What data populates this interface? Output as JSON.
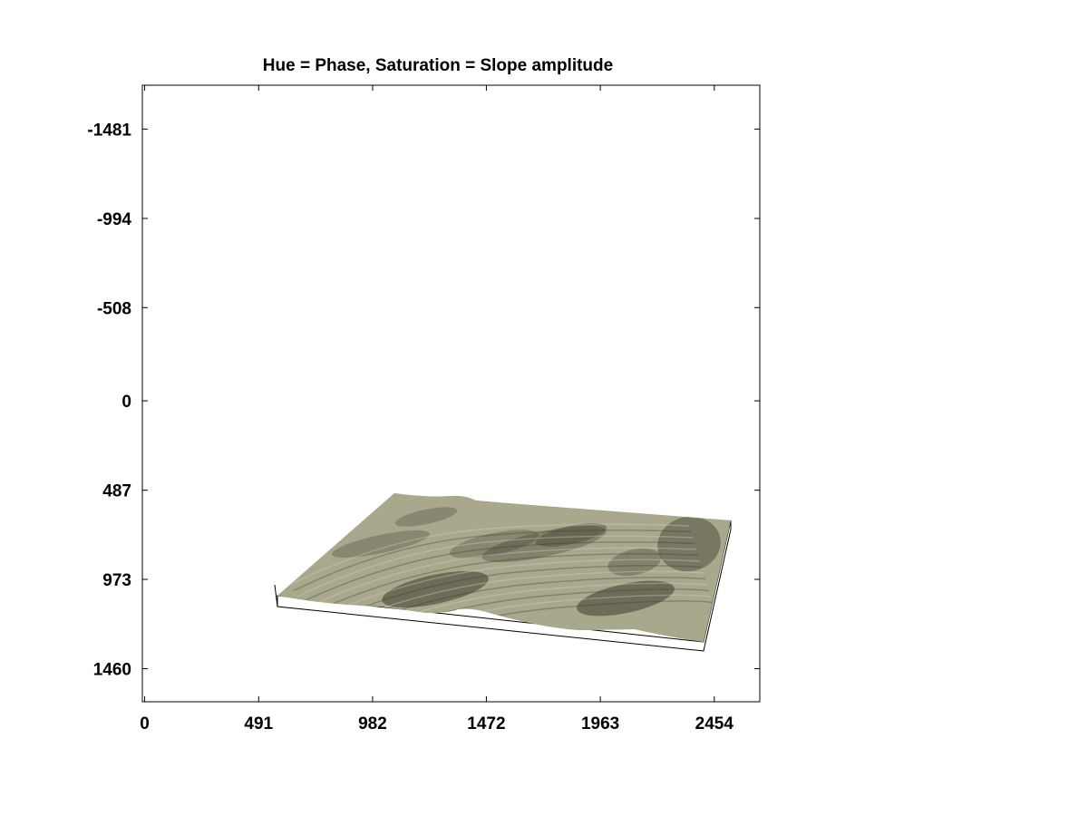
{
  "chart_data": {
    "type": "surface",
    "title": "Hue = Phase, Saturation = Slope amplitude",
    "xlabel": "",
    "ylabel": "",
    "xlim": [
      -10,
      2650
    ],
    "ylim": [
      -1720,
      1640
    ],
    "y_reversed": true,
    "x_ticks": [
      0,
      491,
      982,
      1472,
      1963,
      2454
    ],
    "y_ticks": [
      -1481,
      -994,
      -508,
      0,
      487,
      973,
      1460
    ],
    "surface_color": "#a9a88c",
    "shadow_color": "#3b3b2e",
    "grid": false,
    "legend": "none"
  }
}
